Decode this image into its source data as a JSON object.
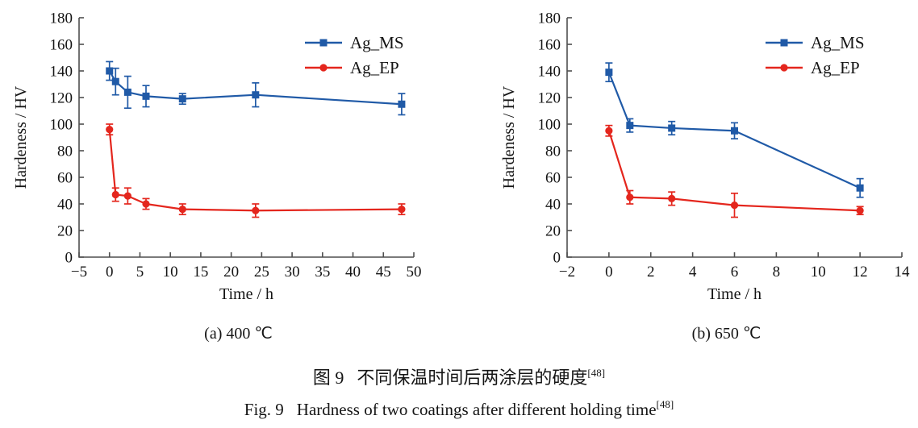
{
  "figure": {
    "captions": {
      "zh": {
        "label": "图 9",
        "text": "不同保温时间后两涂层的硬度",
        "ref": "[48]"
      },
      "en": {
        "label": "Fig. 9",
        "text": "Hardness of two coatings after different holding time",
        "ref": "[48]"
      }
    }
  },
  "colors": {
    "ag_ms": "#205aa7",
    "ag_ep": "#e4261d",
    "axis": "#4f4f4f",
    "text": "#151515"
  },
  "chart_data": [
    {
      "type": "line",
      "title": "(a) 400 ℃",
      "xlabel": "Time / h",
      "ylabel": "Hardeness / HV",
      "xlim": [
        -5,
        50
      ],
      "ylim": [
        0,
        180
      ],
      "xticks": [
        -5,
        0,
        5,
        10,
        15,
        20,
        25,
        30,
        35,
        40,
        45,
        50
      ],
      "xtick_labels": [
        "−5",
        "0",
        "5",
        "10",
        "15",
        "20",
        "25",
        "30",
        "35",
        "40",
        "45",
        "50"
      ],
      "yticks": [
        0,
        20,
        40,
        60,
        80,
        100,
        120,
        140,
        160,
        180
      ],
      "ytick_labels": [
        "0",
        "20",
        "40",
        "60",
        "80",
        "100",
        "120",
        "140",
        "160",
        "180"
      ],
      "grid": false,
      "legend_position": "top-right",
      "x": [
        0,
        1,
        3,
        6,
        12,
        24,
        48
      ],
      "series": [
        {
          "name": "Ag_MS",
          "marker": "square",
          "color": "#205aa7",
          "values": [
            140,
            132,
            124,
            121,
            119,
            122,
            115
          ],
          "errors": [
            7,
            10,
            12,
            8,
            4,
            9,
            8
          ]
        },
        {
          "name": "Ag_EP",
          "marker": "circle",
          "color": "#e4261d",
          "values": [
            96,
            47,
            46,
            40,
            36,
            35,
            36
          ],
          "errors": [
            4,
            5,
            6,
            4,
            4,
            5,
            4
          ]
        }
      ]
    },
    {
      "type": "line",
      "title": "(b) 650 ℃",
      "xlabel": "Time / h",
      "ylabel": "Hardeness / HV",
      "xlim": [
        -2,
        14
      ],
      "ylim": [
        0,
        180
      ],
      "xticks": [
        -2,
        0,
        2,
        4,
        6,
        8,
        10,
        12,
        14
      ],
      "xtick_labels": [
        "−2",
        "0",
        "2",
        "4",
        "6",
        "8",
        "10",
        "12",
        "14"
      ],
      "yticks": [
        0,
        20,
        40,
        60,
        80,
        100,
        120,
        140,
        160,
        180
      ],
      "ytick_labels": [
        "0",
        "20",
        "40",
        "60",
        "80",
        "100",
        "120",
        "140",
        "160",
        "180"
      ],
      "grid": false,
      "legend_position": "top-right",
      "x": [
        0,
        1,
        3,
        6,
        12
      ],
      "series": [
        {
          "name": "Ag_MS",
          "marker": "square",
          "color": "#205aa7",
          "values": [
            139,
            99,
            97,
            95,
            52
          ],
          "errors": [
            7,
            5,
            5,
            6,
            7
          ]
        },
        {
          "name": "Ag_EP",
          "marker": "circle",
          "color": "#e4261d",
          "values": [
            95,
            45,
            44,
            39,
            35
          ],
          "errors": [
            4,
            5,
            5,
            9,
            3
          ]
        }
      ]
    }
  ]
}
